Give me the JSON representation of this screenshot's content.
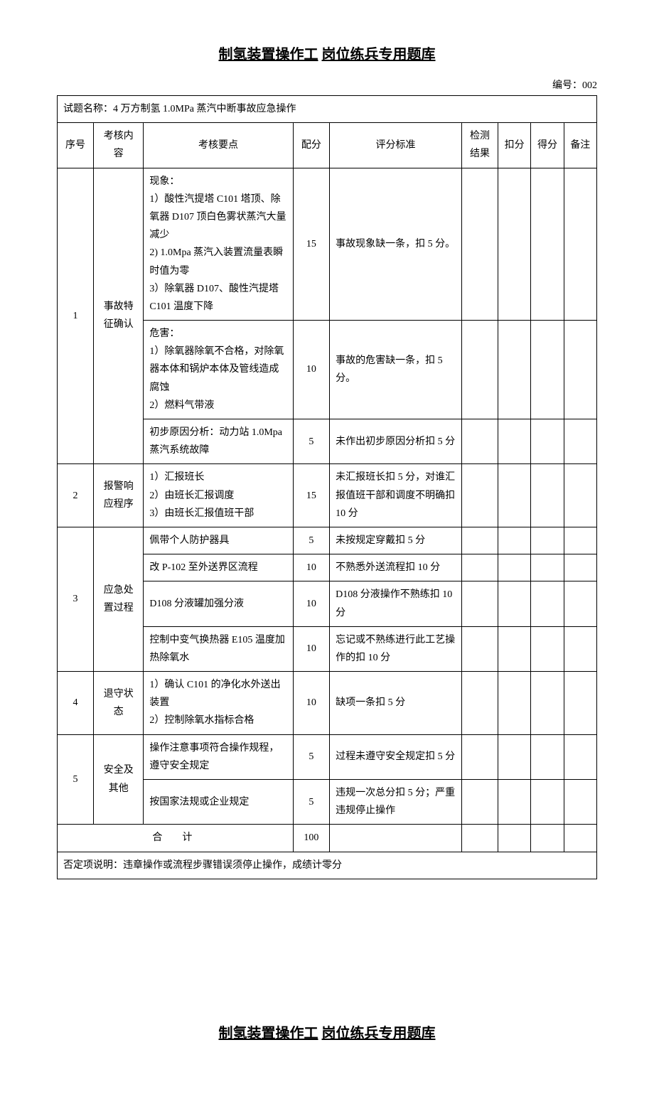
{
  "title_part1": "制氢装置操作工",
  "title_part2": "岗位练兵专用题库",
  "doc_number": "编号：002",
  "test_name_label": "试题名称：",
  "test_name": "4 万方制氢 1.0MPa 蒸汽中断事故应急操作",
  "headers": {
    "seq": "序号",
    "content": "考核内容",
    "points": "考核要点",
    "score": "配分",
    "criteria": "评分标准",
    "detect": "检测结果",
    "deduct": "扣分",
    "get": "得分",
    "remark": "备注"
  },
  "rows": {
    "r1": {
      "seq": "1",
      "content": "事故特征确认",
      "sub1_points": "现象：\n1）酸性汽提塔 C101 塔顶、除氧器 D107 顶白色雾状蒸汽大量减少\n2) 1.0Mpa 蒸汽入装置流量表瞬时值为零\n3）除氧器 D107、酸性汽提塔 C101 温度下降",
      "sub1_score": "15",
      "sub1_criteria": "事故现象缺一条，扣 5 分。",
      "sub2_points": "危害：\n1）除氧器除氧不合格，对除氧器本体和锅炉本体及管线造成腐蚀\n2）燃料气带液",
      "sub2_score": "10",
      "sub2_criteria": "事故的危害缺一条，扣 5 分。",
      "sub3_points": "初步原因分析：动力站 1.0Mpa 蒸汽系统故障",
      "sub3_score": "5",
      "sub3_criteria": "未作出初步原因分析扣 5 分"
    },
    "r2": {
      "seq": "2",
      "content": "报警响应程序",
      "points": "1）汇报班长\n2）由班长汇报调度\n3）由班长汇报值班干部",
      "score": "15",
      "criteria": "未汇报班长扣 5 分，对谁汇报值班干部和调度不明确扣 10 分"
    },
    "r3": {
      "seq": "3",
      "content": "应急处置过程",
      "sub1_points": "佩带个人防护器具",
      "sub1_score": "5",
      "sub1_criteria": "未按规定穿戴扣 5 分",
      "sub2_points": "改 P-102 至外送界区流程",
      "sub2_score": "10",
      "sub2_criteria": "不熟悉外送流程扣 10 分",
      "sub3_points": "D108 分液罐加强分液",
      "sub3_score": "10",
      "sub3_criteria": "D108 分液操作不熟练扣 10 分",
      "sub4_points": "控制中变气换热器 E105 温度加热除氧水",
      "sub4_score": "10",
      "sub4_criteria": "忘记或不熟练进行此工艺操作的扣 10 分"
    },
    "r4": {
      "seq": "4",
      "content": "退守状态",
      "points": "1）确认 C101 的净化水外送出装置\n2）控制除氧水指标合格",
      "score": "10",
      "criteria": "缺项一条扣 5 分"
    },
    "r5": {
      "seq": "5",
      "content": "安全及其他",
      "sub1_points": "操作注意事项符合操作规程，遵守安全规定",
      "sub1_score": "5",
      "sub1_criteria": "过程未遵守安全规定扣 5 分",
      "sub2_points": "按国家法规或企业规定",
      "sub2_score": "5",
      "sub2_criteria": "违规一次总分扣 5 分；严重违规停止操作"
    }
  },
  "total_label": "合计",
  "total_score": "100",
  "footnote": "否定项说明：违章操作或流程步骤错误须停止操作，成绩计零分",
  "title2_part1": "制氢装置操作工",
  "title2_part2": "岗位练兵专用题库"
}
